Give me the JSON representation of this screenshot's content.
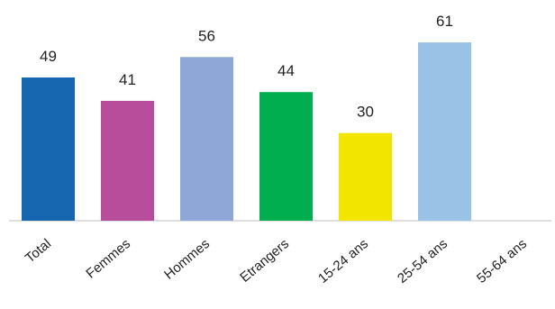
{
  "chart_data": {
    "type": "bar",
    "categories": [
      "Total",
      "Femmes",
      "Hommes",
      "Etrangers",
      "15-24 ans",
      "25-54 ans",
      "55-64 ans"
    ],
    "values": [
      49,
      41,
      56,
      44,
      30,
      61,
      null
    ],
    "value_labels": [
      "49",
      "41",
      "56",
      "44",
      "30",
      "61",
      ""
    ],
    "colors": [
      "#1767b0",
      "#b84d9c",
      "#8fa7d6",
      "#00ad4f",
      "#f2e600",
      "#99c2e6",
      "#cccccc"
    ],
    "ylim": [
      0,
      70
    ],
    "grid": false,
    "legend": "none",
    "title": "",
    "xlabel": "",
    "ylabel": ""
  }
}
